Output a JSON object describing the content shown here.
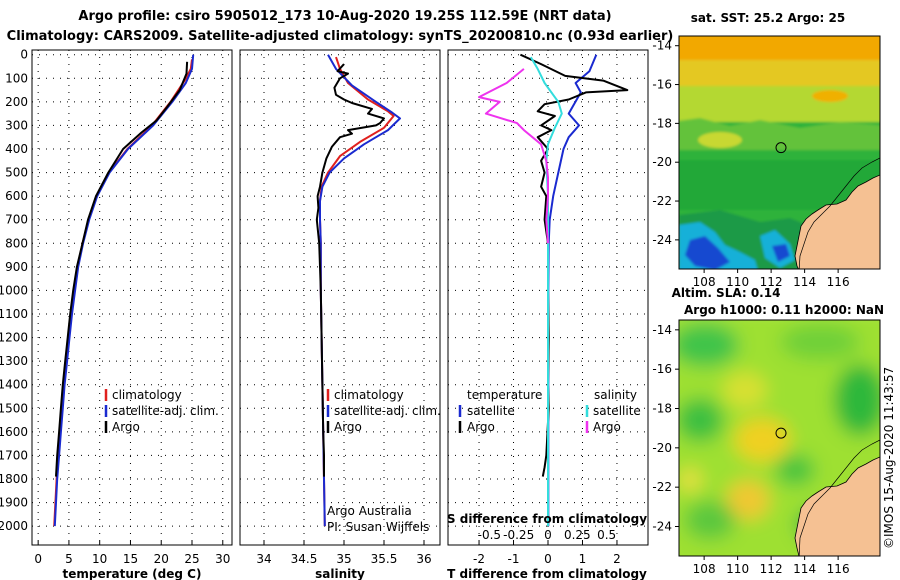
{
  "header": {
    "line1": "Argo profile: csiro 5905012_173 10-Aug-2020 19.25S 112.59E (NRT data)",
    "line2": "Climatology: CARS2009. Satellite-adjusted climatology: synTS_20200810.nc (0.93d earlier)"
  },
  "colors": {
    "climatology": "#e0201e",
    "satellite": "#1a2ad0",
    "argo": "#000000",
    "sal_sat": "#33dddd",
    "sal_argo": "#ee33ee",
    "land": "#f5c193"
  },
  "chart_data": [
    {
      "type": "line",
      "title": "",
      "xlabel": "temperature (deg C)",
      "ylabel": "",
      "xlim": [
        -1,
        31.5
      ],
      "ylim": [
        2080,
        -20
      ],
      "xticks": [
        0,
        5,
        10,
        15,
        20,
        25,
        30
      ],
      "yticks": [
        0,
        100,
        200,
        300,
        400,
        500,
        600,
        700,
        800,
        900,
        1000,
        1100,
        1200,
        1300,
        1400,
        1500,
        1600,
        1700,
        1800,
        1900,
        2000
      ],
      "legend": [
        "climatology",
        "satellite-adj. clim.",
        "Argo"
      ],
      "series": [
        {
          "name": "climatology",
          "color": "#e0201e",
          "points": [
            [
              25.0,
              20
            ],
            [
              24.8,
              60
            ],
            [
              23.8,
              110
            ],
            [
              21.5,
              200
            ],
            [
              18.5,
              300
            ],
            [
              14.5,
              400
            ],
            [
              11.5,
              500
            ],
            [
              9.5,
              600
            ],
            [
              8.2,
              700
            ],
            [
              7.2,
              800
            ],
            [
              6.4,
              900
            ],
            [
              5.9,
              1000
            ],
            [
              5.4,
              1100
            ],
            [
              5.0,
              1200
            ],
            [
              4.6,
              1300
            ],
            [
              4.2,
              1400
            ],
            [
              3.9,
              1500
            ],
            [
              3.6,
              1600
            ],
            [
              3.3,
              1700
            ],
            [
              3.0,
              1800
            ],
            [
              2.8,
              1900
            ],
            [
              2.6,
              2000
            ]
          ]
        },
        {
          "name": "satellite-adj. clim.",
          "color": "#1a2ad0",
          "points": [
            [
              25.2,
              0
            ],
            [
              25.0,
              60
            ],
            [
              24.0,
              120
            ],
            [
              21.8,
              200
            ],
            [
              18.7,
              300
            ],
            [
              14.6,
              400
            ],
            [
              11.6,
              500
            ],
            [
              9.6,
              600
            ],
            [
              8.3,
              700
            ],
            [
              7.3,
              800
            ],
            [
              6.5,
              900
            ],
            [
              6.0,
              1000
            ],
            [
              5.5,
              1100
            ],
            [
              5.1,
              1200
            ],
            [
              4.7,
              1300
            ],
            [
              4.3,
              1400
            ],
            [
              4.0,
              1500
            ],
            [
              3.7,
              1600
            ],
            [
              3.4,
              1700
            ],
            [
              3.1,
              1800
            ],
            [
              2.9,
              1900
            ],
            [
              2.7,
              2000
            ]
          ]
        },
        {
          "name": "Argo",
          "color": "#000000",
          "points": [
            [
              24.2,
              30
            ],
            [
              24.1,
              80
            ],
            [
              23.0,
              150
            ],
            [
              21.0,
              220
            ],
            [
              19.2,
              280
            ],
            [
              16.8,
              330
            ],
            [
              13.8,
              400
            ],
            [
              11.4,
              500
            ],
            [
              9.4,
              600
            ],
            [
              8.1,
              700
            ],
            [
              7.2,
              800
            ],
            [
              6.3,
              900
            ],
            [
              5.7,
              1000
            ],
            [
              5.2,
              1100
            ],
            [
              4.8,
              1200
            ],
            [
              4.4,
              1300
            ],
            [
              4.0,
              1400
            ],
            [
              3.7,
              1500
            ],
            [
              3.4,
              1600
            ],
            [
              3.1,
              1700
            ],
            [
              2.9,
              1790
            ]
          ]
        }
      ]
    },
    {
      "type": "line",
      "title": "",
      "xlabel": "salinity",
      "ylabel": "",
      "xlim": [
        33.7,
        36.2
      ],
      "ylim": [
        2080,
        -20
      ],
      "xticks": [
        34,
        34.5,
        35,
        35.5,
        36
      ],
      "legend": [
        "climatology",
        "satellite-adj. clim.",
        "Argo"
      ],
      "annotations": [
        "Argo Australia",
        "PI: Susan Wijffels"
      ],
      "series": [
        {
          "name": "climatology",
          "color": "#e0201e",
          "points": [
            [
              34.9,
              10
            ],
            [
              34.95,
              60
            ],
            [
              35.05,
              120
            ],
            [
              35.3,
              190
            ],
            [
              35.55,
              240
            ],
            [
              35.62,
              260
            ],
            [
              35.5,
              310
            ],
            [
              35.2,
              370
            ],
            [
              34.95,
              430
            ],
            [
              34.8,
              500
            ],
            [
              34.72,
              560
            ],
            [
              34.7,
              620
            ],
            [
              34.7,
              700
            ],
            [
              34.71,
              800
            ],
            [
              34.71,
              1000
            ],
            [
              34.72,
              1200
            ],
            [
              34.73,
              1400
            ],
            [
              34.74,
              1600
            ],
            [
              34.75,
              1800
            ],
            [
              34.76,
              2000
            ]
          ]
        },
        {
          "name": "satellite-adj. clim.",
          "color": "#1a2ad0",
          "points": [
            [
              34.8,
              0
            ],
            [
              34.9,
              60
            ],
            [
              35.1,
              130
            ],
            [
              35.4,
              200
            ],
            [
              35.6,
              245
            ],
            [
              35.7,
              270
            ],
            [
              35.55,
              320
            ],
            [
              35.25,
              380
            ],
            [
              35.0,
              440
            ],
            [
              34.82,
              500
            ],
            [
              34.73,
              560
            ],
            [
              34.7,
              620
            ],
            [
              34.7,
              700
            ],
            [
              34.71,
              800
            ],
            [
              34.71,
              1000
            ],
            [
              34.72,
              1200
            ],
            [
              34.73,
              1400
            ],
            [
              34.74,
              1600
            ],
            [
              34.75,
              1800
            ],
            [
              34.76,
              2000
            ]
          ]
        },
        {
          "name": "Argo",
          "color": "#000000",
          "points": [
            [
              35.0,
              40
            ],
            [
              34.92,
              70
            ],
            [
              35.05,
              80
            ],
            [
              34.95,
              100
            ],
            [
              34.88,
              140
            ],
            [
              34.9,
              170
            ],
            [
              35.0,
              190
            ],
            [
              35.1,
              205
            ],
            [
              35.35,
              230
            ],
            [
              35.3,
              250
            ],
            [
              35.5,
              270
            ],
            [
              35.45,
              290
            ],
            [
              35.4,
              300
            ],
            [
              35.05,
              320
            ],
            [
              35.1,
              335
            ],
            [
              34.95,
              350
            ],
            [
              34.85,
              390
            ],
            [
              34.78,
              440
            ],
            [
              34.73,
              500
            ],
            [
              34.7,
              560
            ],
            [
              34.67,
              600
            ],
            [
              34.68,
              650
            ],
            [
              34.66,
              700
            ],
            [
              34.69,
              800
            ],
            [
              34.7,
              900
            ],
            [
              34.71,
              1000
            ],
            [
              34.72,
              1200
            ],
            [
              34.73,
              1400
            ],
            [
              34.74,
              1600
            ],
            [
              34.75,
              1700
            ],
            [
              34.75,
              1790
            ]
          ]
        }
      ]
    },
    {
      "type": "line",
      "title": "",
      "xlabel": "T difference from climatology",
      "xlabel2": "S difference from climatology",
      "ylabel": "",
      "xlim": [
        -2.9,
        2.9
      ],
      "ylim": [
        2080,
        -20
      ],
      "xticks": [
        -2,
        -1,
        0,
        1,
        2
      ],
      "xticks2": [
        "-0.5",
        "-0.25",
        "0",
        "0.25",
        "0.5"
      ],
      "legend": [
        "temperature",
        "satellite",
        "Argo",
        "salinity",
        "satellite",
        "Argo"
      ],
      "series": [
        {
          "name": "temperature satellite",
          "color": "#1a2ad0",
          "points": [
            [
              1.4,
              0
            ],
            [
              1.2,
              70
            ],
            [
              0.8,
              120
            ],
            [
              0.95,
              160
            ],
            [
              0.6,
              250
            ],
            [
              0.9,
              300
            ],
            [
              0.6,
              350
            ],
            [
              0.45,
              400
            ],
            [
              0.3,
              500
            ],
            [
              0.15,
              600
            ],
            [
              0.05,
              700
            ],
            [
              0.02,
              800
            ],
            [
              0.01,
              1000
            ],
            [
              0.01,
              1500
            ],
            [
              0.01,
              2000
            ]
          ]
        },
        {
          "name": "temperature Argo",
          "color": "#000000",
          "points": [
            [
              -0.8,
              0
            ],
            [
              -0.2,
              40
            ],
            [
              0.5,
              90
            ],
            [
              1.6,
              110
            ],
            [
              2.3,
              150
            ],
            [
              1.1,
              160
            ],
            [
              0.6,
              190
            ],
            [
              -0.1,
              210
            ],
            [
              -0.3,
              240
            ],
            [
              0.2,
              260
            ],
            [
              -0.2,
              300
            ],
            [
              0.1,
              320
            ],
            [
              -0.3,
              350
            ],
            [
              0.0,
              400
            ],
            [
              -0.2,
              450
            ],
            [
              -0.1,
              500
            ],
            [
              -0.2,
              560
            ],
            [
              -0.05,
              600
            ],
            [
              -0.1,
              700
            ],
            [
              0.0,
              800
            ],
            [
              0.0,
              1000
            ],
            [
              0.02,
              1200
            ],
            [
              0.0,
              1400
            ],
            [
              0.02,
              1500
            ],
            [
              -0.05,
              1700
            ],
            [
              -0.1,
              1750
            ],
            [
              -0.15,
              1790
            ]
          ]
        },
        {
          "name": "salinity satellite",
          "color": "#33dddd",
          "points": [
            [
              -0.5,
              10
            ],
            [
              -0.3,
              60
            ],
            [
              -0.1,
              120
            ],
            [
              0.3,
              200
            ],
            [
              0.4,
              250
            ],
            [
              0.2,
              310
            ],
            [
              0.0,
              380
            ],
            [
              -0.05,
              450
            ],
            [
              0.0,
              600
            ],
            [
              0.0,
              800
            ],
            [
              0.0,
              1000
            ],
            [
              0.0,
              1500
            ],
            [
              0.0,
              2000
            ]
          ]
        },
        {
          "name": "salinity Argo",
          "color": "#ee33ee",
          "points": [
            [
              -0.7,
              60
            ],
            [
              -1.2,
              120
            ],
            [
              -2.0,
              180
            ],
            [
              -1.4,
              200
            ],
            [
              -1.8,
              250
            ],
            [
              -0.9,
              290
            ],
            [
              -0.7,
              320
            ],
            [
              -0.2,
              380
            ],
            [
              -0.05,
              450
            ],
            [
              0.0,
              520
            ],
            [
              0.0,
              600
            ],
            [
              -0.05,
              700
            ],
            [
              0.0,
              800
            ]
          ]
        }
      ]
    }
  ],
  "maps": {
    "sst": {
      "title": "sat. SST: 25.2 Argo: 25",
      "xticks": [
        "108",
        "110",
        "112",
        "114",
        "116"
      ],
      "yticks": [
        "-14",
        "-16",
        "-18",
        "-20",
        "-22",
        "-24"
      ],
      "lon_range": [
        106.5,
        118.5
      ],
      "lat_range": [
        -25.5,
        -13.5
      ],
      "float_lon": 112.59,
      "float_lat": -19.25
    },
    "sla": {
      "title_line1": "Altim. SLA: 0.14",
      "title_line2": "Argo h1000: 0.11 h2000: NaN",
      "xticks": [
        "108",
        "110",
        "112",
        "114",
        "116"
      ],
      "yticks": [
        "-14",
        "-16",
        "-18",
        "-20",
        "-22",
        "-24"
      ],
      "lon_range": [
        106.5,
        118.5
      ],
      "lat_range": [
        -25.5,
        -13.5
      ],
      "float_lon": 112.59,
      "float_lat": -19.25
    }
  },
  "footer": {
    "credit": "©IMOS 15-Aug-2020 11:43:57"
  }
}
